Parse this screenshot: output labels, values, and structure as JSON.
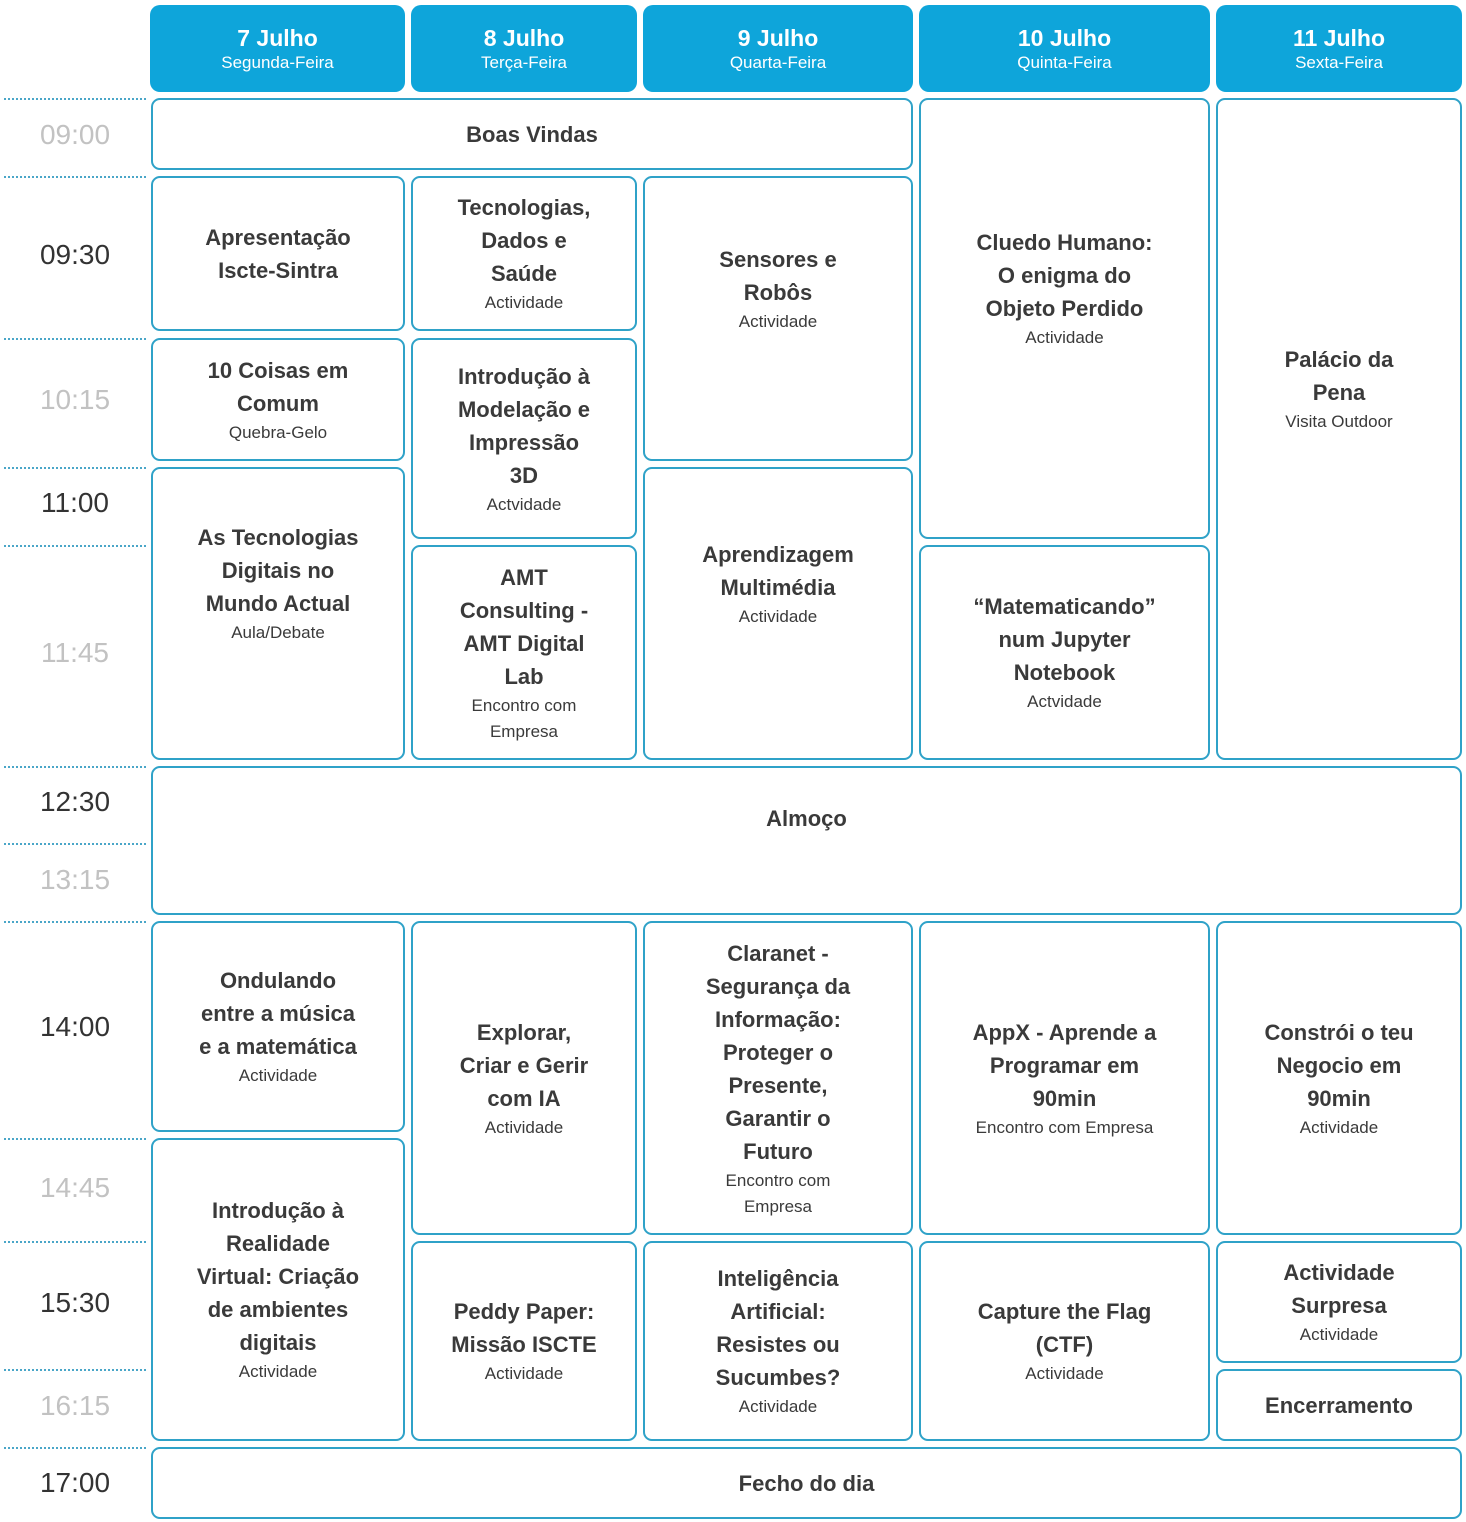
{
  "days": [
    {
      "date": "7 Julho",
      "weekday": "Segunda-Feira"
    },
    {
      "date": "8 Julho",
      "weekday": "Terça-Feira"
    },
    {
      "date": "9 Julho",
      "weekday": "Quarta-Feira"
    },
    {
      "date": "10 Julho",
      "weekday": "Quinta-Feira"
    },
    {
      "date": "11 Julho",
      "weekday": "Sexta-Feira"
    }
  ],
  "times": [
    {
      "label": "09:00",
      "emphasis": false
    },
    {
      "label": "09:30",
      "emphasis": true
    },
    {
      "label": "10:15",
      "emphasis": false
    },
    {
      "label": "11:00",
      "emphasis": true
    },
    {
      "label": "11:45",
      "emphasis": false
    },
    {
      "label": "12:30",
      "emphasis": true
    },
    {
      "label": "13:15",
      "emphasis": false
    },
    {
      "label": "14:00",
      "emphasis": true
    },
    {
      "label": "14:45",
      "emphasis": false
    },
    {
      "label": "15:30",
      "emphasis": true
    },
    {
      "label": "16:15",
      "emphasis": false
    },
    {
      "label": "17:00",
      "emphasis": true
    }
  ],
  "sessions": [
    {
      "title": "Boas Vindas",
      "subtitle": ""
    },
    {
      "title": "Apresentação\nIscte-Sintra",
      "subtitle": ""
    },
    {
      "title": "10 Coisas em\nComum",
      "subtitle": "Quebra-Gelo"
    },
    {
      "title": "As Tecnologias\nDigitais no\nMundo Actual",
      "subtitle": "Aula/Debate"
    },
    {
      "title": "Tecnologias,\nDados e\nSaúde",
      "subtitle": "Actividade"
    },
    {
      "title": "Introdução à\nModelação e\nImpressão\n3D",
      "subtitle": "Actvidade"
    },
    {
      "title": "AMT\nConsulting -\nAMT Digital\nLab",
      "subtitle": "Encontro com\nEmpresa"
    },
    {
      "title": "Sensores e\nRobôs",
      "subtitle": "Actividade"
    },
    {
      "title": "Aprendizagem\nMultimédia",
      "subtitle": "Actividade"
    },
    {
      "title": "Cluedo Humano:\nO enigma do\nObjeto Perdido",
      "subtitle": "Actividade"
    },
    {
      "title": "“Matematicando”\nnum Jupyter\nNotebook",
      "subtitle": "Actvidade"
    },
    {
      "title": "Palácio da\nPena",
      "subtitle": "Visita Outdoor"
    },
    {
      "title": "Almoço",
      "subtitle": ""
    },
    {
      "title": "Ondulando\nentre a música\ne a matemática",
      "subtitle": "Actividade"
    },
    {
      "title": "Introdução à\nRealidade\nVirtual: Criação\nde ambientes\ndigitais",
      "subtitle": "Actividade"
    },
    {
      "title": "Explorar,\nCriar e Gerir\ncom IA",
      "subtitle": "Actividade"
    },
    {
      "title": "Peddy Paper:\nMissão ISCTE",
      "subtitle": "Actividade"
    },
    {
      "title": "Claranet -\nSegurança da\nInformação:\nProteger o\nPresente,\nGarantir o\nFuturo",
      "subtitle": "Encontro com\nEmpresa"
    },
    {
      "title": "Inteligência\nArtificial:\nResistes ou\nSucumbes?",
      "subtitle": "Actividade"
    },
    {
      "title": "AppX - Aprende a\nProgramar em\n90min",
      "subtitle": "Encontro com Empresa"
    },
    {
      "title": "Capture the Flag\n(CTF)",
      "subtitle": "Actividade"
    },
    {
      "title": "Constrói o teu\nNegocio em\n90min",
      "subtitle": "Actividade"
    },
    {
      "title": "Actividade\nSurpresa",
      "subtitle": "Actividade"
    },
    {
      "title": "Encerramento",
      "subtitle": ""
    },
    {
      "title": "Fecho do dia",
      "subtitle": ""
    }
  ],
  "colors": {
    "header": "#0ea5da",
    "border": "#2fa2c8",
    "time_dark": "#333333",
    "time_light": "#c2c2c2"
  }
}
